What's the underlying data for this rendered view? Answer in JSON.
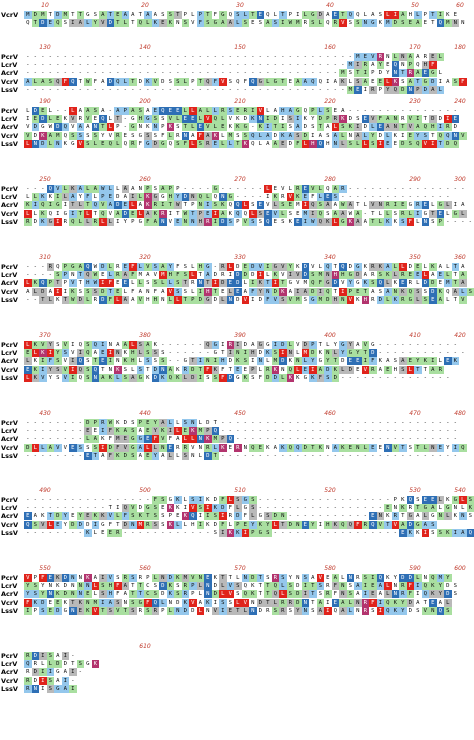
{
  "colors": {
    "g": "#a9dfa0",
    "b": "#94c7ec",
    "d": "#2e6fb5",
    "s": "#b9b9b9",
    "r": "#e0231b",
    "m": "#b3346e"
  },
  "blocks": [
    {
      "ruler": [
        "10",
        "20",
        "30",
        "40",
        "50",
        "60"
      ],
      "rows": [
        {
          "label": "VcrV",
          "seq": "MDMTDMTTGSATEAATAASSTPLPTFGQSLTEQLTPILGDAETQQLASLIAHLPTIKE"
        },
        {
          "label": "",
          "seq": "QTDEQSIALYVDTLTQLKEKNSVFSGAALSESASIWMRSLQRVSSNGKMDSEAETQMNN"
        }
      ]
    },
    {
      "ruler": [
        "130",
        "140",
        "150",
        "160",
        "170",
        "180"
      ],
      "rows": [
        {
          "label": "PcrV",
          "seq": "--------------------------------------------MEVRNLNAAREL"
        },
        {
          "label": "LcrV",
          "seq": "-------------------------------------------MIRAYEQNPQHF"
        },
        {
          "label": "AcrV",
          "seq": "------------------------------------------MSTIPDYNTRAEGL"
        },
        {
          "label": "VcrV",
          "seq": "ALASQFQTWFADQLTDKVDSSLPTQFVSQFQGLGTEAAQQIAKLSAEELKSATGDIASF"
        },
        {
          "label": "LssV",
          "seq": "-------------------------------------------MEIRPYQDNPDAL"
        }
      ]
    },
    {
      "ruler": [
        "190",
        "200",
        "210",
        "220",
        "230",
        "240"
      ],
      "rows": [
        {
          "label": "PcrV",
          "seq": "LDEL--LAASA-APASAEQEELLALLRSERIVLAHAGQPLSEA---------------"
        },
        {
          "label": "LcrV",
          "seq": "IEDLEKVRVEQLT-GHGSSVLEELVQLVKDKNIDISIKYDPRKDSEVFANRVITDDIE"
        },
        {
          "label": "AcrV",
          "seq": "VDGWDQVAANTLP-GNKNPKSTLEVLEKKG-KITISADSTALSKIDLEANTVAQHIRD"
        },
        {
          "label": "VcrV",
          "seq": "VDKAMQSSSSYVRESGSSFLRNAFAKLMSSQLADKASDIASALNALYDLKIEYSTQQNV"
        },
        {
          "label": "LssV",
          "seq": "LNDLNKGVSLEQLQRFGDGQSFLSRELLTKQLAAEDFLHQHNLSLLSIEEDSQVITDQ"
        }
      ]
    },
    {
      "ruler": [
        "250",
        "260",
        "270",
        "280",
        "290",
        "300"
      ],
      "rows": [
        {
          "label": "PcrV",
          "seq": "---QVLKALAWLLAANPSAPP----G------LEVLREVLQAR----------------"
        },
        {
          "label": "LcrV",
          "seq": "LLKKILAYFLPEDAILKGGHYDNQLQNG----IKRVKEFLES---------------"
        },
        {
          "label": "AcrV",
          "seq": "KIQIGITLTQVADELAKRITWTPNISKQQLSEVLSEMIQSAAWATLVNRIEGRELGLIA"
        },
        {
          "label": "VcrV",
          "seq": "LLKQIGITLTQVADELAKRITWTPEIAKQQLSEVLSEMIQSAAWA-TLLSRLIGTELGL"
        },
        {
          "label": "LssV",
          "seq": "RDKGIRQLLRLLIYPGFANVENNHRIDSPVSSQESKEIWQKLGKAATLKKSFLNSP----"
        }
      ]
    },
    {
      "ruler": [
        "310",
        "320",
        "330",
        "340",
        "350",
        "360"
      ],
      "rows": [
        {
          "label": "PcrV",
          "seq": "---RQPGAQWDLREFLVSAYFSLHG-RLDEDVIGVYKDVLQTQDGKRKALLDELKALTA"
        },
        {
          "label": "LcrV",
          "seq": "----SPNTQWELRAFMAVMHFSLTADRIDDDILKVIVDSMNHHGDARSKLREELAELTA"
        },
        {
          "label": "AcrV",
          "seq": "LKQPTPVTHWIFEELLSSLLSTRNTIDEDLIKTITGVMQFGDVYGKSQLKERLDDEMTA"
        },
        {
          "label": "VcrV",
          "seq": "ALDAIIKSSSDTELFANFAVSSLIHTELEAFYNDKAIADIQTIPETASANKQSSDKQALS"
        },
        {
          "label": "LssV",
          "seq": "--TLKTWDLRDFLAAVHHNLLTPDGDLNDVIDFVSVMSGMDHNVKHRDLKRGLSEALTV"
        }
      ]
    },
    {
      "ruler": [
        "370",
        "380",
        "390",
        "400",
        "410",
        "420"
      ],
      "rows": [
        {
          "label": "PcrV",
          "seq": "LKVYSVIQSQINAALSAK------QGIRIDAGGIDLVDPTLYGYAVG-----------"
        },
        {
          "label": "LcrV",
          "seq": "ELKIYSVIQAEINKHLSSS------GTINIHDKSINLMDKNLYGYTD------------"
        },
        {
          "label": "AcrV",
          "seq": "LKIFSVIQSTEINKHLSSS--GTINIHDKSINLMDKNLYGYTDEEIFKASAEYKILEK"
        },
        {
          "label": "VcrV",
          "seq": "EKIYSVIQSQTNKSLSTDNAKRDTFKFTEEPLRKNQLEIADKLDEVRAEHSLTTAR"
        },
        {
          "label": "LssV",
          "seq": "LKVYSVIQSNAKLSAGKDKQKLDISSFDGKSFDDLKKGKFSD---------------"
        }
      ]
    },
    {
      "ruler": [
        "430",
        "440",
        "450",
        "460",
        "470",
        "480"
      ],
      "rows": [
        {
          "label": "PcrV",
          "seq": "--------DPRWKDSPEYALLSNLDT--------------------------------"
        },
        {
          "label": "LcrV",
          "seq": "--------EEIFKASAEYKILEKMPQ--------------------------------"
        },
        {
          "label": "AcrV",
          "seq": "--------LAKFMEGGEFVFALLNKMPQ------------------------------"
        },
        {
          "label": "VcrV",
          "seq": "DLLAVVESSSIDFVGALLNERRVNRLKERNQEKAKQQDTKNAKENLEENVTSTLNEYIQ"
        },
        {
          "label": "LssV",
          "seq": "--------ETAFKDSAEYALLSNLDT--------------------------------"
        }
      ]
    },
    {
      "ruler": [
        "490",
        "500",
        "510",
        "520",
        "530",
        "540"
      ],
      "rows": [
        {
          "label": "PcrV",
          "seq": "-----------------FSGKLSIKDFLSGS------------------PKQSEELKGLSDE"
        },
        {
          "label": "LcrV",
          "seq": "-----------TIQVDGSEKKIVSIKDFLGS-----------------ENKRTGALGNLKNS"
        },
        {
          "label": "AcrV",
          "seq": "EAKTDYEYEKKVLFSKTSSPEKQIISIRDFLGSDN-----------ENKRTGALGNLKNS"
        },
        {
          "label": "VcrV",
          "seq": "QSVLEYDDDIGFTDNMRSSKLLHIKDFLPEYKYLTDNEYIHKQQFRQVTVADGAS"
        },
        {
          "label": "LssV",
          "seq": "--------KLEER------------SIKKIPGS-----------------EKKISSKIAQGK"
        }
      ]
    },
    {
      "ruler": [
        "550",
        "560",
        "570",
        "580",
        "590",
        "600"
      ],
      "rows": [
        {
          "label": "PcrV",
          "seq": "VPFEKDNNKAIVSRSRPLNDKMVNEKTTLNDTSRSYNSAVEALNRSIQKYDDLNQMY"
        },
        {
          "label": "LcrV",
          "seq": "YSYNKDNNNLSHFATTCSDKSRPLNDLVSQKTTQLSDITSRFNSAIEALNRFIQKYDS"
        },
        {
          "label": "AcrV",
          "seq": "YSYNKDNNELSHFATTCSDKSRPLNDLVSQKTTQLSDITSRFNSAIEALNRFIQKYDS"
        },
        {
          "label": "VcrV",
          "seq": "FKDEEKTKNMIASNSGFQLNDKVAKISSLVNDTLRRDNTAIEALNRFIQKYDATEAL"
        },
        {
          "label": "LssV",
          "seq": "IPSEDGNEKVTSVTSRSRPLNDDLNVIETLNDRSRSYNSAIQALNRSIQKYDSVNQS"
        }
      ]
    },
    {
      "ruler": [
        "610"
      ],
      "rows": [
        {
          "label": "PcrV",
          "seq": "RDISAI-"
        },
        {
          "label": "LcrV",
          "seq": "QRLLDDTSGK"
        },
        {
          "label": "AcrV",
          "seq": "RDIIGAI-"
        },
        {
          "label": "VcrV",
          "seq": "RDISAI-"
        },
        {
          "label": "LssV",
          "seq": "RNISGAI"
        }
      ]
    }
  ]
}
